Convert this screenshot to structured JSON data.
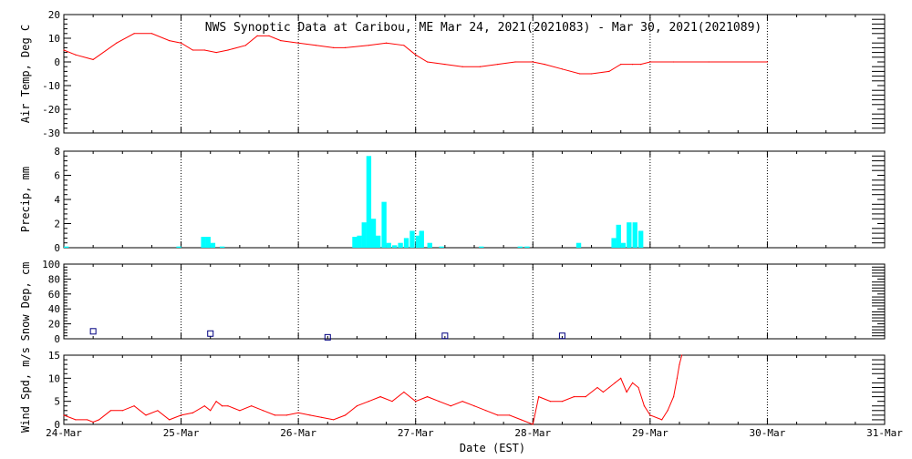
{
  "chart_data": {
    "title": "NWS Synoptic Data at Caribou, ME   Mar 24, 2021(2021083) - Mar 30, 2021(2021089)",
    "xlabel": "Date (EST)",
    "x_ticks": [
      "24-Mar",
      "25-Mar",
      "26-Mar",
      "27-Mar",
      "28-Mar",
      "29-Mar",
      "30-Mar",
      "31-Mar"
    ],
    "xlim": [
      0,
      7
    ],
    "grid": "vertical dotted at day boundaries",
    "colors": {
      "line": "#ff0000",
      "bars": "#00ffff",
      "markers": "#000080",
      "axes": "#000000"
    },
    "panels": [
      {
        "type": "line",
        "ylabel": "Air Temp, Deg C",
        "ylim": [
          -30,
          20
        ],
        "yticks": [
          20,
          10,
          0,
          -10,
          -20,
          -30
        ],
        "series": [
          {
            "x": [
              0,
              0.1,
              0.25,
              0.45,
              0.6,
              0.75,
              0.9,
              1.0,
              1.1,
              1.2,
              1.3,
              1.4,
              1.55,
              1.65,
              1.75,
              1.85,
              2.0,
              2.15,
              2.3,
              2.4,
              2.6,
              2.75,
              2.9,
              3.0,
              3.1,
              3.25,
              3.4,
              3.55,
              3.7,
              3.85,
              4.0,
              4.1,
              4.25,
              4.4,
              4.5,
              4.65,
              4.75,
              4.85,
              4.92,
              5.0,
              5.2,
              5.5,
              6.0
            ],
            "y": [
              5,
              3,
              1,
              8,
              12,
              12,
              9,
              8,
              5,
              5,
              4,
              5,
              7,
              11,
              11,
              9,
              8,
              7,
              6,
              6,
              7,
              8,
              7,
              3,
              0,
              -1,
              -2,
              -2,
              -1,
              0,
              0,
              -1,
              -3,
              -5,
              -5,
              -4,
              -1,
              -1,
              -1,
              0,
              0,
              0,
              0
            ]
          }
        ]
      },
      {
        "type": "bar",
        "ylabel": "Precip, mm",
        "ylim": [
          0,
          8
        ],
        "yticks": [
          0,
          2,
          4,
          6,
          8
        ],
        "bars": {
          "x": [
            0.0,
            0.96,
            1.17,
            1.21,
            1.25,
            1.33,
            2.46,
            2.5,
            2.54,
            2.58,
            2.62,
            2.66,
            2.71,
            2.75,
            2.8,
            2.85,
            2.9,
            2.95,
            3.0,
            3.03,
            3.1,
            3.2,
            3.54,
            3.87,
            3.93,
            4.37,
            4.67,
            4.71,
            4.75,
            4.8,
            4.85,
            4.9
          ],
          "values": [
            0.1,
            0.1,
            0.9,
            0.9,
            0.4,
            0.1,
            0.9,
            1.0,
            2.1,
            7.6,
            2.4,
            1.0,
            3.8,
            0.4,
            0.2,
            0.4,
            0.8,
            1.4,
            1.0,
            1.4,
            0.4,
            0.1,
            0.1,
            0.1,
            0.1,
            0.4,
            0.8,
            1.9,
            0.4,
            2.1,
            2.1,
            1.4
          ]
        }
      },
      {
        "type": "scatter",
        "ylabel": "Snow Dep, cm",
        "ylim": [
          0,
          100
        ],
        "yticks": [
          0,
          20,
          40,
          60,
          80,
          100
        ],
        "series": [
          {
            "x": [
              0.25,
              1.25,
              2.25,
              3.25,
              4.25
            ],
            "y": [
              10,
              7,
              2,
              4,
              4
            ]
          }
        ]
      },
      {
        "type": "line",
        "ylabel": "Wind Spd, m/s",
        "ylim": [
          0,
          15
        ],
        "yticks": [
          15,
          10,
          5,
          0
        ],
        "series": [
          {
            "x": [
              0,
              0.1,
              0.2,
              0.25,
              0.3,
              0.4,
              0.5,
              0.6,
              0.7,
              0.8,
              0.9,
              1.0,
              1.1,
              1.2,
              1.25,
              1.3,
              1.35,
              1.4,
              1.5,
              1.6,
              1.7,
              1.8,
              1.9,
              2.0,
              2.1,
              2.2,
              2.3,
              2.4,
              2.5,
              2.6,
              2.7,
              2.8,
              2.9,
              3.0,
              3.1,
              3.2,
              3.3,
              3.4,
              3.5,
              3.6,
              3.7,
              3.8,
              3.9,
              4.0,
              4.05,
              4.15,
              4.25,
              4.35,
              4.45,
              4.55,
              4.6,
              4.65,
              4.7,
              4.75,
              4.8,
              4.85,
              4.9,
              4.95,
              5.0,
              5.1,
              5.15,
              5.2,
              5.23,
              5.25,
              5.27
            ],
            "y": [
              2,
              1,
              1,
              0.5,
              1,
              3,
              3,
              4,
              2,
              3,
              1,
              2,
              2.5,
              4,
              3,
              5,
              4,
              4,
              3,
              4,
              3,
              2,
              2,
              2.5,
              2,
              1.5,
              1,
              2,
              4,
              5,
              6,
              5,
              7,
              5,
              6,
              5,
              4,
              5,
              4,
              3,
              2,
              2,
              1,
              0,
              6,
              5,
              5,
              6,
              6,
              8,
              7,
              8,
              9,
              10,
              7,
              9,
              8,
              4,
              2,
              1,
              3,
              6,
              10,
              13,
              15
            ]
          }
        ]
      }
    ]
  }
}
